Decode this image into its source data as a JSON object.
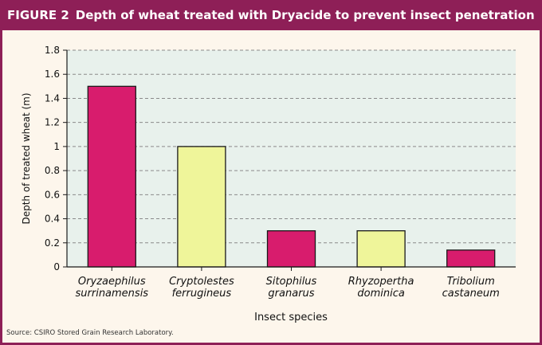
{
  "header": {
    "figure_label": "FIGURE 2",
    "title": "Depth of wheat treated with Dryacide to prevent insect penetration"
  },
  "footer": {
    "source": "Source: CSIRO Stored Grain Research Laboratory."
  },
  "colors": {
    "frame": "#8e1f57",
    "title_text": "#ffffff",
    "background": "#fdf6ec",
    "plot_background": "#e8f1ec",
    "grid": "#8a8a8a",
    "bar_magenta": "#d81c6d",
    "bar_yellow": "#eff59a",
    "bar_stroke": "#1a1a1a"
  },
  "chart_data": {
    "type": "bar",
    "title": "Depth of wheat treated with Dryacide to prevent insect penetration",
    "xlabel": "Insect species",
    "ylabel": "Depth of treated wheat (m)",
    "ylim": [
      0,
      1.8
    ],
    "yticks": [
      0,
      0.2,
      0.4,
      0.6,
      0.8,
      1,
      1.2,
      1.4,
      1.6,
      1.8
    ],
    "ytick_labels": [
      "0",
      "0.2",
      "0.4",
      "0.6",
      "0.8",
      "1",
      "1.2",
      "1.4",
      "1.6",
      "1.8"
    ],
    "grid": "horizontal dashed",
    "categories": [
      [
        "Oryzaephilus",
        "surrinamensis"
      ],
      [
        "Cryptolestes",
        "ferrugineus"
      ],
      [
        "Sitophilus",
        "granarus"
      ],
      [
        "Rhyzopertha",
        "dominica"
      ],
      [
        "Tribolium",
        "castaneum"
      ]
    ],
    "values": [
      1.5,
      1.0,
      0.3,
      0.3,
      0.14
    ],
    "bar_colors": [
      "#d81c6d",
      "#eff59a",
      "#d81c6d",
      "#eff59a",
      "#d81c6d"
    ]
  }
}
